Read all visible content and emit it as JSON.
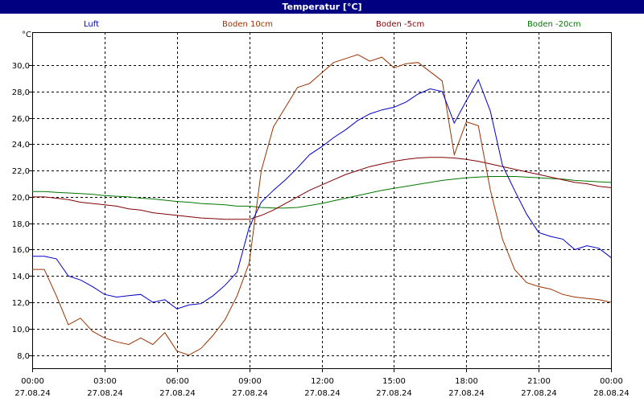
{
  "window": {
    "title": "Temperatur [°C]"
  },
  "chart_data": {
    "type": "line",
    "title": "Temperatur [°C]",
    "ylabel": "°C",
    "xlabel": "",
    "ylim": [
      7.0,
      32.5
    ],
    "xlim": [
      0,
      24
    ],
    "grid": true,
    "legend_placement": "top",
    "y_ticks": [
      "8,0",
      "10,0",
      "12,0",
      "14,0",
      "16,0",
      "18,0",
      "20,0",
      "22,0",
      "24,0",
      "26,0",
      "28,0",
      "30,0"
    ],
    "x_ticks": [
      {
        "time": "00:00",
        "date": "27.08.24"
      },
      {
        "time": "03:00",
        "date": "27.08.24"
      },
      {
        "time": "06:00",
        "date": "27.08.24"
      },
      {
        "time": "09:00",
        "date": "27.08.24"
      },
      {
        "time": "12:00",
        "date": "27.08.24"
      },
      {
        "time": "15:00",
        "date": "27.08.24"
      },
      {
        "time": "18:00",
        "date": "27.08.24"
      },
      {
        "time": "21:00",
        "date": "27.08.24"
      },
      {
        "time": "00:00",
        "date": "28.08.24"
      }
    ],
    "x": [
      0,
      0.5,
      1,
      1.5,
      2,
      2.5,
      3,
      3.5,
      4,
      4.5,
      5,
      5.5,
      6,
      6.5,
      7,
      7.5,
      8,
      8.5,
      9,
      9.5,
      10,
      10.5,
      11,
      11.5,
      12,
      12.5,
      13,
      13.5,
      14,
      14.5,
      15,
      15.5,
      16,
      16.5,
      17,
      17.5,
      18,
      18.5,
      19,
      19.5,
      20,
      20.5,
      21,
      21.5,
      22,
      22.5,
      23,
      23.5,
      24
    ],
    "series": [
      {
        "name": "Luft",
        "color": "#0000cc",
        "values": [
          15.5,
          15.5,
          15.3,
          14.0,
          13.7,
          13.2,
          12.6,
          12.4,
          12.5,
          12.6,
          12.0,
          12.2,
          11.5,
          11.8,
          11.9,
          12.5,
          13.3,
          14.3,
          17.7,
          19.6,
          20.5,
          21.3,
          22.2,
          23.2,
          23.8,
          24.5,
          25.1,
          25.8,
          26.3,
          26.6,
          26.8,
          27.2,
          27.8,
          28.2,
          28.0,
          25.6,
          27.3,
          28.9,
          26.5,
          22.4,
          20.5,
          18.7,
          17.3,
          17.0,
          16.8,
          16.0,
          16.3,
          16.1,
          15.4
        ]
      },
      {
        "name": "Boden 10cm",
        "color": "#993300",
        "values": [
          14.5,
          14.5,
          12.5,
          10.3,
          10.8,
          9.8,
          9.3,
          9.0,
          8.8,
          9.3,
          8.8,
          9.7,
          8.3,
          8.0,
          8.5,
          9.5,
          10.7,
          12.5,
          15.0,
          22.0,
          25.3,
          26.8,
          28.3,
          28.6,
          29.4,
          30.2,
          30.5,
          30.8,
          30.3,
          30.6,
          29.8,
          30.1,
          30.2,
          29.5,
          28.8,
          23.2,
          25.7,
          25.4,
          20.5,
          16.8,
          14.5,
          13.5,
          13.2,
          13.0,
          12.6,
          12.4,
          12.3,
          12.2,
          12.0
        ]
      },
      {
        "name": "Boden -5cm",
        "color": "#800000",
        "values": [
          20.0,
          20.0,
          19.9,
          19.8,
          19.6,
          19.5,
          19.4,
          19.3,
          19.1,
          19.0,
          18.8,
          18.7,
          18.6,
          18.5,
          18.4,
          18.35,
          18.3,
          18.3,
          18.3,
          18.6,
          19.0,
          19.5,
          20.0,
          20.5,
          20.9,
          21.3,
          21.7,
          22.0,
          22.3,
          22.5,
          22.7,
          22.85,
          22.95,
          23.0,
          23.0,
          22.95,
          22.85,
          22.7,
          22.5,
          22.3,
          22.1,
          21.9,
          21.7,
          21.5,
          21.3,
          21.1,
          21.0,
          20.8,
          20.7
        ]
      },
      {
        "name": "Boden -20cm",
        "color": "#007700",
        "values": [
          20.4,
          20.4,
          20.35,
          20.3,
          20.25,
          20.2,
          20.1,
          20.05,
          20.0,
          19.9,
          19.85,
          19.75,
          19.65,
          19.6,
          19.5,
          19.45,
          19.4,
          19.3,
          19.3,
          19.2,
          19.15,
          19.15,
          19.2,
          19.35,
          19.5,
          19.7,
          19.9,
          20.1,
          20.3,
          20.5,
          20.65,
          20.8,
          20.95,
          21.1,
          21.25,
          21.35,
          21.45,
          21.5,
          21.55,
          21.55,
          21.55,
          21.5,
          21.45,
          21.4,
          21.35,
          21.25,
          21.2,
          21.15,
          21.1
        ]
      }
    ]
  }
}
